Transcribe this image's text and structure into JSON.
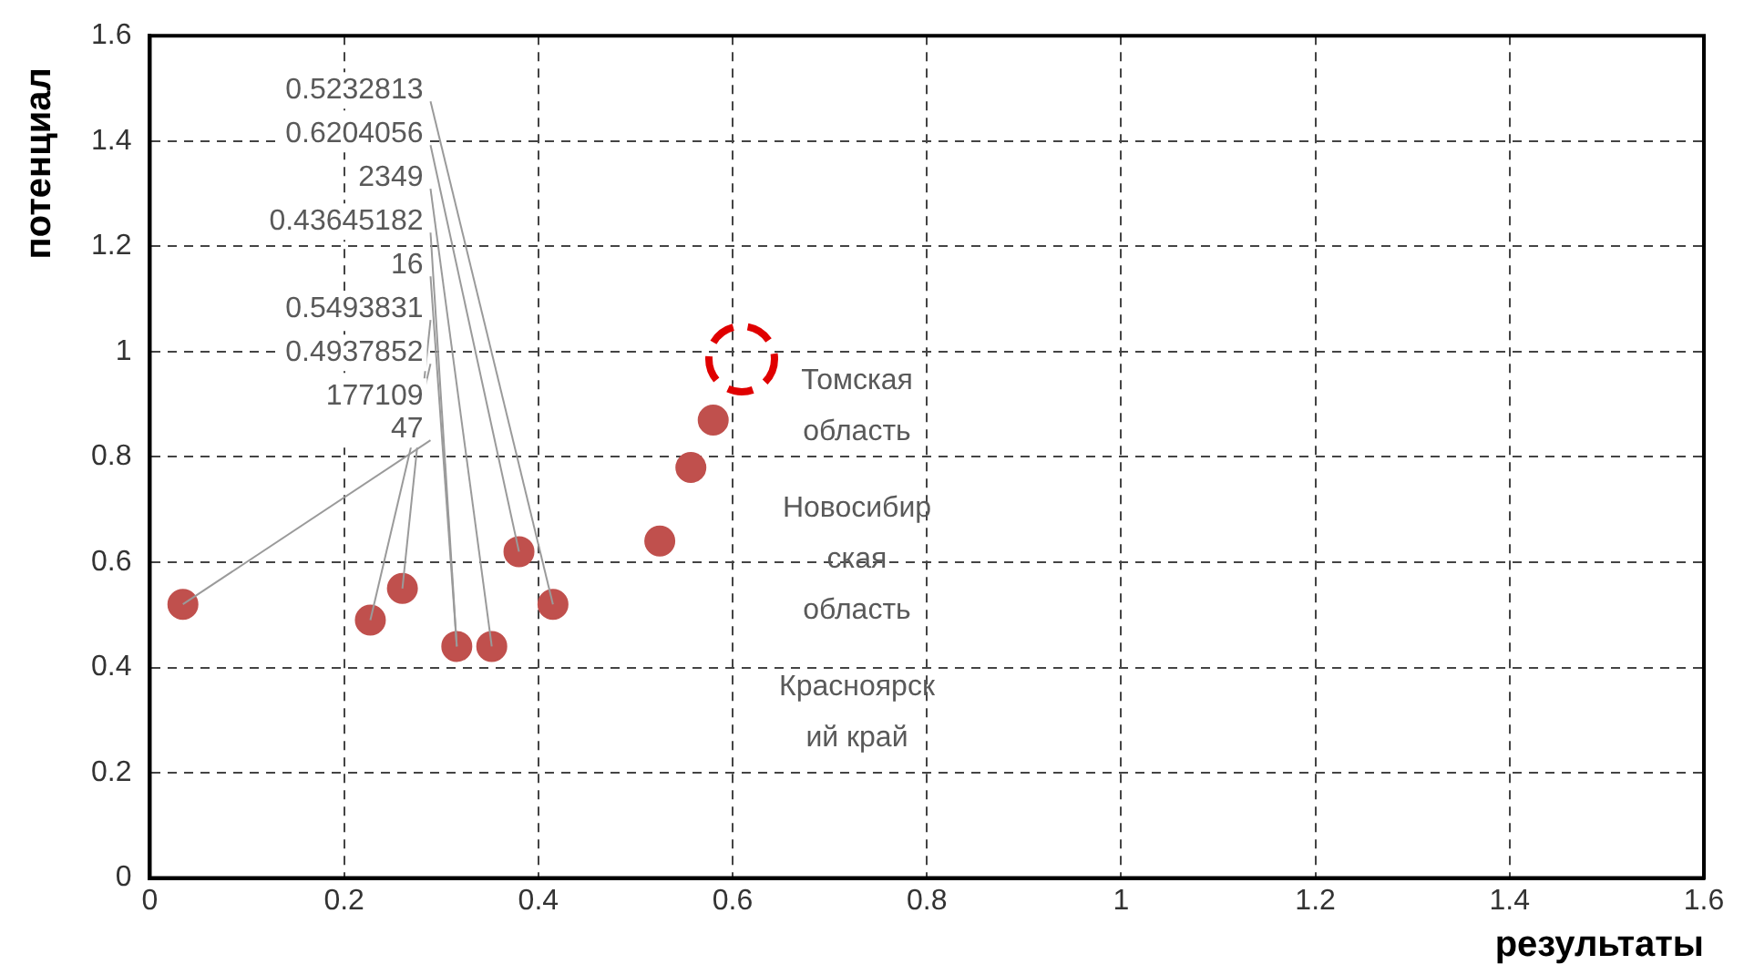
{
  "chart_data": {
    "type": "scatter",
    "xlabel": "результаты",
    "ylabel": "потенциал",
    "x": [
      0.034,
      0.227,
      0.26,
      0.316,
      0.352,
      0.38,
      0.415,
      0.525,
      0.557,
      0.58
    ],
    "values": [
      0.52,
      0.49,
      0.55,
      0.44,
      0.44,
      0.62,
      0.52,
      0.64,
      0.78,
      0.87
    ],
    "color": "#c0504d",
    "marker": "circle",
    "xlim": [
      0,
      1.6
    ],
    "xticks": [
      0,
      0.2,
      0.4,
      0.6,
      0.8,
      1,
      1.2,
      1.4,
      1.6
    ],
    "ylim": [
      0,
      1.6
    ],
    "yticks": [
      0,
      0.2,
      0.4,
      0.6,
      0.8,
      1,
      1.2,
      1.4,
      1.6
    ],
    "grid": true,
    "legend": false,
    "annotations": [
      {
        "text": "0.6204056",
        "x": 0.38,
        "y": 0.62
      },
      {
        "text": "0.5493831",
        "x": 0.26,
        "y": 0.55
      },
      {
        "text": "0.5232813",
        "x": 0.415,
        "y": 0.52
      },
      {
        "text": "0.4937852",
        "x": 0.227,
        "y": 0.49
      },
      {
        "text": "177109\n47",
        "x": 0.034,
        "y": 0.52
      },
      {
        "text": "0.43645182",
        "x": 0.316,
        "y": 0.44
      },
      {
        "text": "16",
        "x": 0.316,
        "y": 0.44
      },
      {
        "text": "2349",
        "x": 0.352,
        "y": 0.44
      },
      "Томская\nобласть",
      "Новосибир\nская\nобласть",
      "Красноярск\nий край"
    ]
  }
}
